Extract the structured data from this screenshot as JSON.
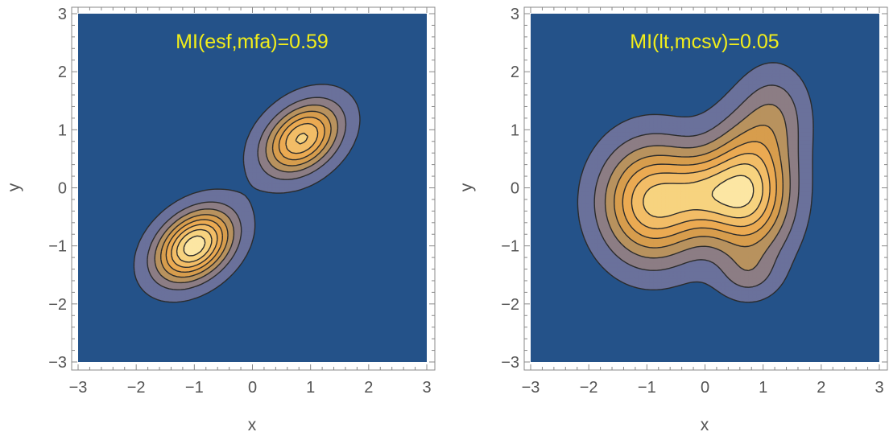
{
  "chart_data": [
    {
      "type": "contour",
      "title": "MI(esf,mfa)=0.59",
      "xlabel": "x",
      "ylabel": "y",
      "xlim": [
        -3,
        3
      ],
      "ylim": [
        -3,
        3
      ],
      "x_ticks": [
        "−3",
        "−2",
        "−1",
        "0",
        "1",
        "2",
        "3"
      ],
      "y_ticks": [
        "−3",
        "−2",
        "−1",
        "0",
        "1",
        "2",
        "3"
      ],
      "background_color": "#245289",
      "level_colors": [
        "#6a719b",
        "#8c7d84",
        "#b8925e",
        "#d79d4d",
        "#ebaa52",
        "#f2bd67",
        "#f7d37f",
        "#fce6a3"
      ],
      "modes": [
        {
          "x": -1.0,
          "y": -1.0,
          "sx": 0.45,
          "sy": 0.42,
          "rho": 0.35,
          "w": 1.0
        },
        {
          "x": 0.85,
          "y": 0.85,
          "sx": 0.45,
          "sy": 0.42,
          "rho": 0.35,
          "w": 0.82
        }
      ],
      "levels": [
        0.07,
        0.2,
        0.32,
        0.44,
        0.56,
        0.68,
        0.8,
        0.92
      ]
    },
    {
      "type": "contour",
      "title": "MI(lt,mcsv)=0.05",
      "xlabel": "x",
      "ylabel": "y",
      "xlim": [
        -3,
        3
      ],
      "ylim": [
        -3,
        3
      ],
      "x_ticks": [
        "−3",
        "−2",
        "−1",
        "0",
        "1",
        "2",
        "3"
      ],
      "y_ticks": [
        "−3",
        "−2",
        "−1",
        "0",
        "1",
        "2",
        "3"
      ],
      "background_color": "#245289",
      "level_colors": [
        "#6a719b",
        "#8c7d84",
        "#b8925e",
        "#d79d4d",
        "#ebaa52",
        "#f2bd67",
        "#f7d37f",
        "#fce6a3"
      ],
      "modes": [
        {
          "x": -0.9,
          "y": -0.25,
          "sx": 0.6,
          "sy": 0.7,
          "rho": 0.0,
          "w": 1.0
        },
        {
          "x": 0.75,
          "y": -0.05,
          "sx": 0.5,
          "sy": 0.75,
          "rho": 0.0,
          "w": 1.05
        },
        {
          "x": 0.0,
          "y": -0.1,
          "sx": 0.45,
          "sy": 0.45,
          "rho": 0.0,
          "w": 0.45
        },
        {
          "x": 1.2,
          "y": 1.3,
          "sx": 0.4,
          "sy": 0.55,
          "rho": 0.0,
          "w": 0.3
        },
        {
          "x": 0.75,
          "y": -1.5,
          "sx": 0.35,
          "sy": 0.3,
          "rho": 0.0,
          "w": 0.2
        }
      ],
      "levels": [
        0.08,
        0.2,
        0.32,
        0.44,
        0.56,
        0.68,
        0.8,
        0.92
      ]
    }
  ]
}
